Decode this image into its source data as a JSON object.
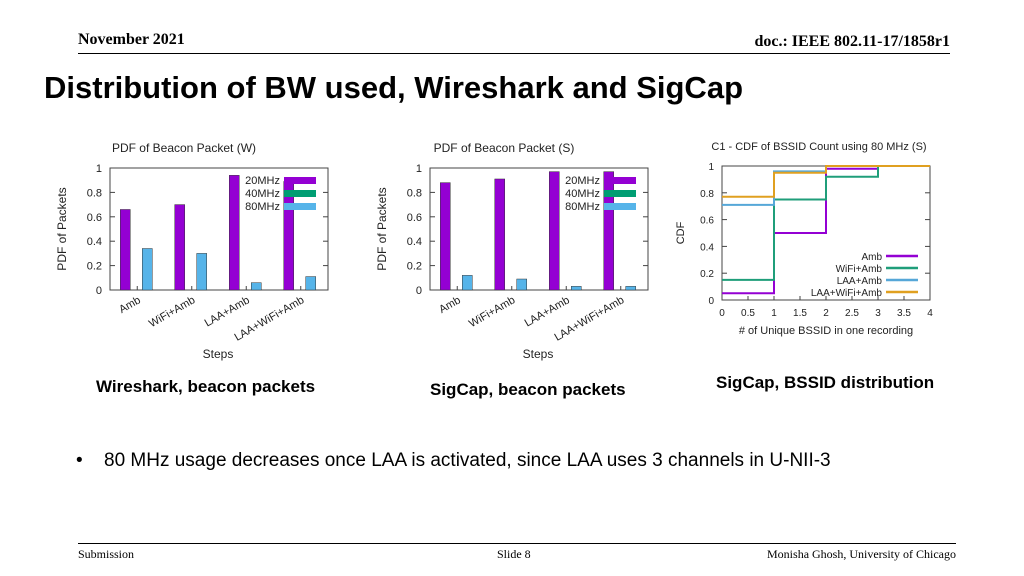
{
  "header": {
    "date": "November 2021",
    "doc": "doc.: IEEE 802.11-17/1858r1"
  },
  "title": "Distribution of BW used, Wireshark and SigCap",
  "colors": {
    "bw20": "#9400d3",
    "bw40": "#009e73",
    "bw80": "#56b4e9",
    "amb": "#9400d3",
    "wifi": "#1f9e7a",
    "laa": "#56a7d8",
    "laawifi": "#e0a020"
  },
  "chart_data": [
    {
      "type": "bar",
      "title": "PDF of Beacon Packet (W)",
      "xlabel": "Steps",
      "ylabel": "PDF of Packets",
      "ylim": [
        0,
        1
      ],
      "yticks": [
        "0",
        "0.2",
        "0.4",
        "0.6",
        "0.8",
        "1"
      ],
      "categories": [
        "Amb",
        "WiFi+Amb",
        "LAA+Amb",
        "LAA+WiFi+Amb"
      ],
      "series": [
        {
          "name": "20MHz",
          "values": [
            0.66,
            0.7,
            0.94,
            0.89
          ]
        },
        {
          "name": "40MHz",
          "values": [
            0.0,
            0.0,
            0.0,
            0.0
          ]
        },
        {
          "name": "80MHz",
          "values": [
            0.34,
            0.3,
            0.06,
            0.11
          ]
        }
      ]
    },
    {
      "type": "bar",
      "title": "PDF of Beacon Packet (S)",
      "xlabel": "Steps",
      "ylabel": "PDF of Packets",
      "ylim": [
        0,
        1
      ],
      "yticks": [
        "0",
        "0.2",
        "0.4",
        "0.6",
        "0.8",
        "1"
      ],
      "categories": [
        "Amb",
        "WiFi+Amb",
        "LAA+Amb",
        "LAA+WiFi+Amb"
      ],
      "series": [
        {
          "name": "20MHz",
          "values": [
            0.88,
            0.91,
            0.97,
            0.97
          ]
        },
        {
          "name": "40MHz",
          "values": [
            0.0,
            0.0,
            0.0,
            0.0
          ]
        },
        {
          "name": "80MHz",
          "values": [
            0.12,
            0.09,
            0.03,
            0.03
          ]
        }
      ]
    },
    {
      "type": "line",
      "title": "C1 - CDF of BSSID Count using 80 MHz (S)",
      "xlabel": "# of Unique BSSID in one recording",
      "ylabel": "CDF",
      "xlim": [
        0,
        4
      ],
      "ylim": [
        0,
        1
      ],
      "xticks": [
        "0",
        "0.5",
        "1",
        "1.5",
        "2",
        "2.5",
        "3",
        "3.5",
        "4"
      ],
      "yticks": [
        "0",
        "0.2",
        "0.4",
        "0.6",
        "0.8",
        "1"
      ],
      "series": [
        {
          "name": "Amb",
          "points": [
            [
              0,
              0.05
            ],
            [
              1,
              0.05
            ],
            [
              1,
              0.5
            ],
            [
              2,
              0.5
            ],
            [
              2,
              0.98
            ],
            [
              3,
              0.98
            ],
            [
              3,
              1
            ],
            [
              4,
              1
            ]
          ]
        },
        {
          "name": "WiFi+Amb",
          "points": [
            [
              0,
              0.15
            ],
            [
              1,
              0.15
            ],
            [
              1,
              0.75
            ],
            [
              2,
              0.75
            ],
            [
              2,
              0.92
            ],
            [
              3,
              0.92
            ],
            [
              3,
              1
            ],
            [
              4,
              1
            ]
          ]
        },
        {
          "name": "LAA+Amb",
          "points": [
            [
              0,
              0.71
            ],
            [
              1,
              0.71
            ],
            [
              1,
              0.96
            ],
            [
              2,
              0.96
            ],
            [
              2,
              1
            ],
            [
              4,
              1
            ]
          ]
        },
        {
          "name": "LAA+WiFi+Amb",
          "points": [
            [
              0,
              0.77
            ],
            [
              1,
              0.77
            ],
            [
              1,
              0.95
            ],
            [
              2,
              0.95
            ],
            [
              2,
              1
            ],
            [
              4,
              1
            ]
          ]
        }
      ]
    }
  ],
  "captions": {
    "c1": "Wireshark, beacon packets",
    "c2": "SigCap, beacon packets",
    "c3": "SigCap, BSSID distribution"
  },
  "bullet": {
    "mark": "•",
    "text": "80 MHz usage decreases once LAA is activated, since LAA uses 3 channels in U-NII-3"
  },
  "footer": {
    "left": "Submission",
    "center": "Slide 8",
    "right": "Monisha Ghosh, University of Chicago"
  }
}
